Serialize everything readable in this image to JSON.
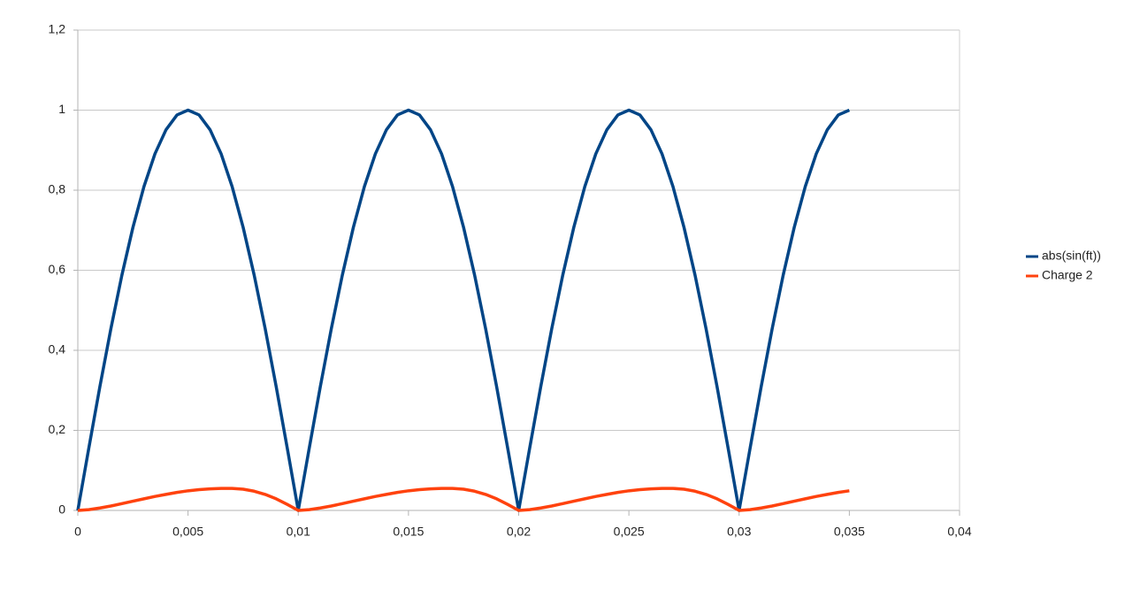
{
  "chart_data": {
    "type": "line",
    "x": [
      0,
      0.0005,
      0.001,
      0.0015,
      0.002,
      0.0025,
      0.003,
      0.0035,
      0.004,
      0.0045,
      0.005,
      0.0055,
      0.006,
      0.0065,
      0.007,
      0.0075,
      0.008,
      0.0085,
      0.009,
      0.0095,
      0.01,
      0.0105,
      0.011,
      0.0115,
      0.012,
      0.0125,
      0.013,
      0.0135,
      0.014,
      0.0145,
      0.015,
      0.0155,
      0.016,
      0.0165,
      0.017,
      0.0175,
      0.018,
      0.0185,
      0.019,
      0.0195,
      0.02,
      0.0205,
      0.021,
      0.0215,
      0.022,
      0.0225,
      0.023,
      0.0235,
      0.024,
      0.0245,
      0.025,
      0.0255,
      0.026,
      0.0265,
      0.027,
      0.0275,
      0.028,
      0.0285,
      0.029,
      0.0295,
      0.03,
      0.0305,
      0.031,
      0.0315,
      0.032,
      0.0325,
      0.033,
      0.0335,
      0.034,
      0.0345,
      0.035
    ],
    "series": [
      {
        "name": "abs(sin(ft))",
        "color": "#004586",
        "values": [
          0,
          0.156,
          0.309,
          0.454,
          0.588,
          0.707,
          0.809,
          0.891,
          0.951,
          0.988,
          1,
          0.988,
          0.951,
          0.891,
          0.809,
          0.707,
          0.588,
          0.454,
          0.309,
          0.156,
          0,
          0.156,
          0.309,
          0.454,
          0.588,
          0.707,
          0.809,
          0.891,
          0.951,
          0.988,
          1,
          0.988,
          0.951,
          0.891,
          0.809,
          0.707,
          0.588,
          0.454,
          0.309,
          0.156,
          0,
          0.156,
          0.309,
          0.454,
          0.588,
          0.707,
          0.809,
          0.891,
          0.951,
          0.988,
          1,
          0.988,
          0.951,
          0.891,
          0.809,
          0.707,
          0.588,
          0.454,
          0.309,
          0.156,
          0,
          0.156,
          0.309,
          0.454,
          0.588,
          0.707,
          0.809,
          0.891,
          0.951,
          0.988,
          1
        ]
      },
      {
        "name": "Charge 2",
        "color": "#ff420e",
        "values": [
          0,
          0.002,
          0.006,
          0.011,
          0.017,
          0.023,
          0.029,
          0.035,
          0.04,
          0.045,
          0.049,
          0.052,
          0.054,
          0.055,
          0.055,
          0.053,
          0.048,
          0.04,
          0.029,
          0.015,
          0,
          0.002,
          0.006,
          0.011,
          0.017,
          0.023,
          0.029,
          0.035,
          0.04,
          0.045,
          0.049,
          0.052,
          0.054,
          0.055,
          0.055,
          0.053,
          0.048,
          0.04,
          0.029,
          0.015,
          0,
          0.002,
          0.006,
          0.011,
          0.017,
          0.023,
          0.029,
          0.035,
          0.04,
          0.045,
          0.049,
          0.052,
          0.054,
          0.055,
          0.055,
          0.053,
          0.048,
          0.04,
          0.029,
          0.015,
          0,
          0.002,
          0.006,
          0.011,
          0.017,
          0.023,
          0.029,
          0.035,
          0.04,
          0.045,
          0.049
        ]
      }
    ],
    "xlim": [
      0,
      0.04
    ],
    "xticks": [
      0,
      {
        "value": 0.005,
        "label": "0,005"
      },
      {
        "value": 0.01,
        "label": "0,01"
      },
      {
        "value": 0.015,
        "label": "0,015"
      },
      {
        "value": 0.02,
        "label": "0,02"
      },
      {
        "value": 0.025,
        "label": "0,025"
      },
      {
        "value": 0.03,
        "label": "0,03"
      },
      {
        "value": 0.035,
        "label": "0,035"
      },
      {
        "value": 0.04,
        "label": "0,04"
      }
    ],
    "ylim": [
      0,
      1.2
    ],
    "yticks": [
      0,
      {
        "value": 0.2,
        "label": "0,2"
      },
      {
        "value": 0.4,
        "label": "0,4"
      },
      {
        "value": 0.6,
        "label": "0,6"
      },
      {
        "value": 0.8,
        "label": "0,8"
      },
      1,
      {
        "value": 1.2,
        "label": "1,2"
      }
    ],
    "grid": true,
    "legend": "right"
  }
}
